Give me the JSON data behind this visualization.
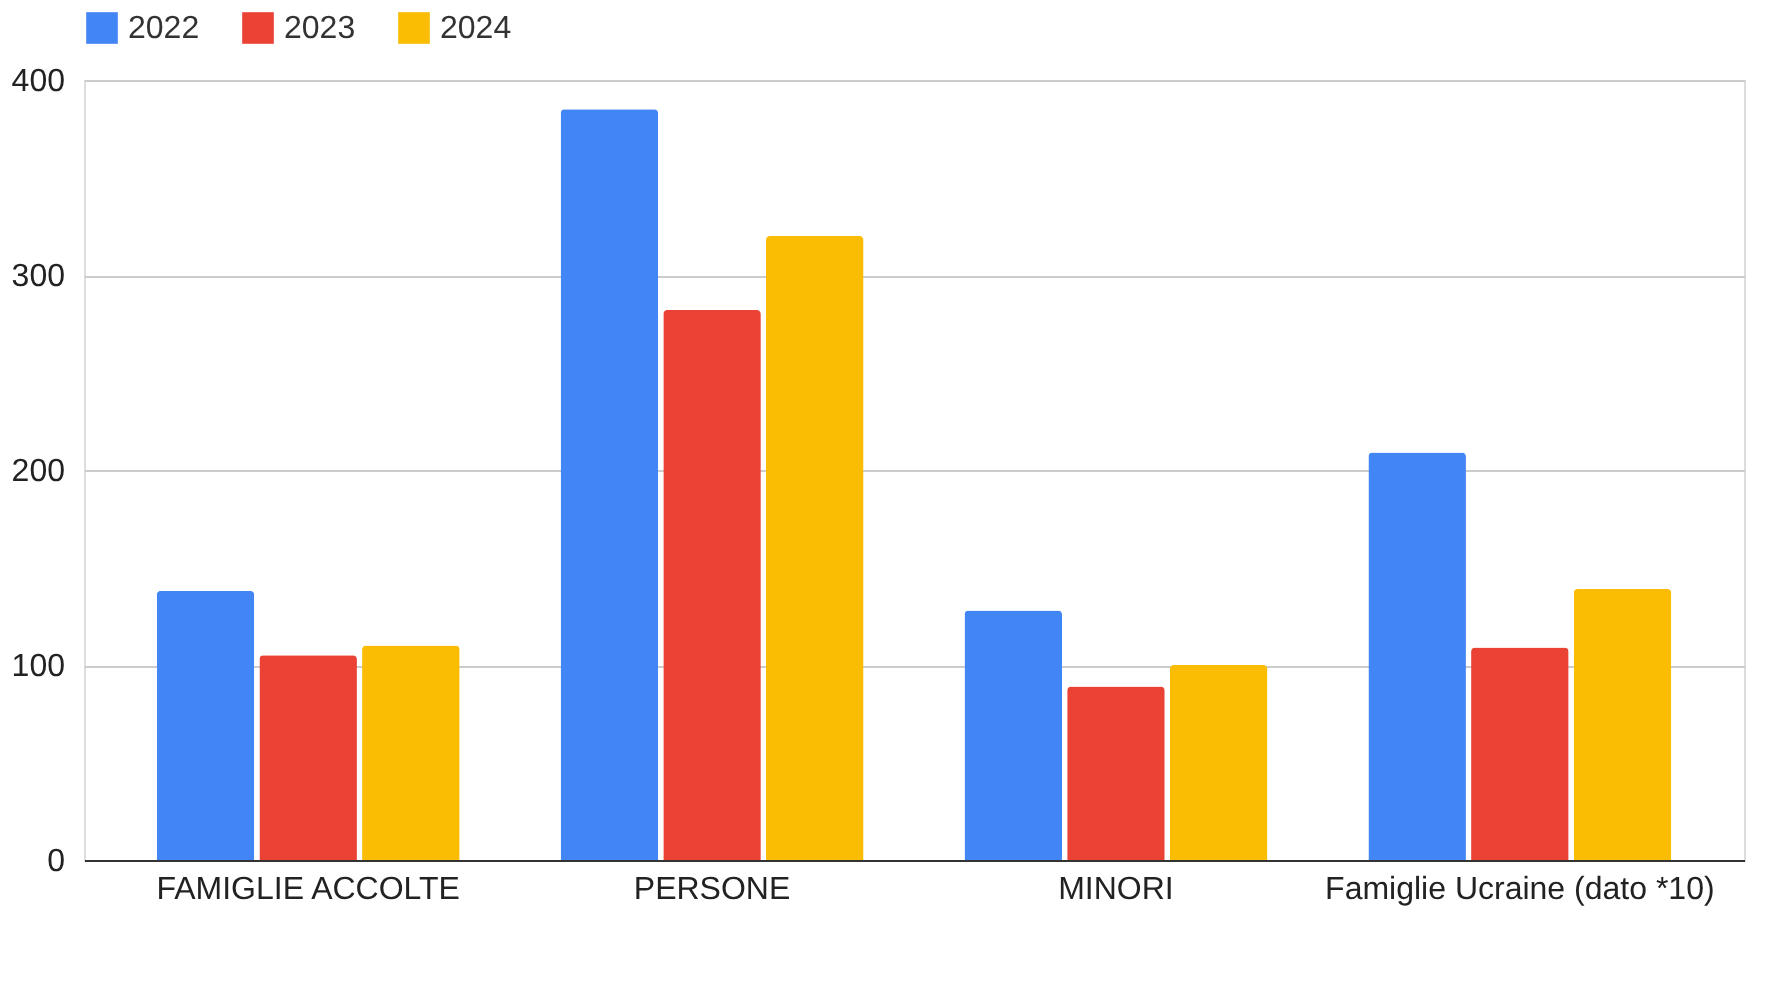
{
  "chart_data": {
    "type": "bar",
    "categories": [
      "FAMIGLIE ACCOLTE",
      "PERSONE",
      "MINORI",
      "Famiglie Ucraine (dato *10)"
    ],
    "series": [
      {
        "name": "2022",
        "color": "#4285f4",
        "values": [
          138,
          385,
          128,
          209
        ]
      },
      {
        "name": "2023",
        "color": "#ea4335",
        "values": [
          105,
          282,
          89,
          109
        ]
      },
      {
        "name": "2024",
        "color": "#fbbc04",
        "values": [
          110,
          320,
          100,
          139
        ]
      }
    ],
    "ylim": [
      0,
      400
    ],
    "yticks": [
      0,
      100,
      200,
      300,
      400
    ],
    "grid": "y",
    "legend": "top"
  }
}
